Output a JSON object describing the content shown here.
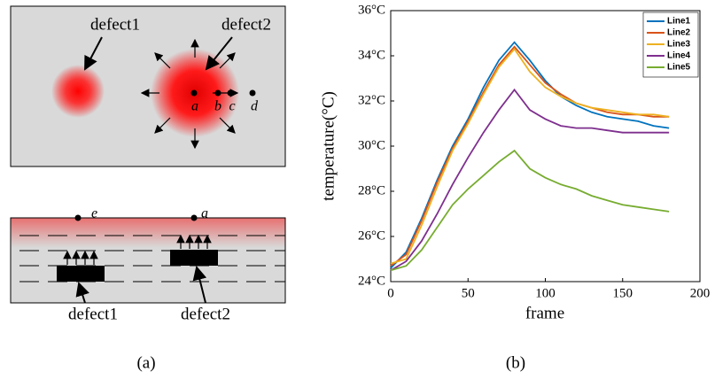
{
  "panel_a": {
    "top": {
      "labels": [
        "defect1",
        "defect2"
      ],
      "points": [
        "a",
        "b",
        "c",
        "d"
      ]
    },
    "bottom": {
      "points": [
        "e",
        "a"
      ],
      "labels": [
        "defect1",
        "defect2"
      ]
    },
    "caption": "(a)"
  },
  "chart_data": {
    "type": "line",
    "caption": "(b)",
    "xlabel": "frame",
    "ylabel": "temperature(°C)",
    "x": [
      0,
      10,
      20,
      30,
      40,
      50,
      60,
      70,
      80,
      90,
      100,
      110,
      120,
      130,
      140,
      150,
      160,
      170,
      180
    ],
    "series": [
      {
        "name": "Line1",
        "color": "#0072bd",
        "values": [
          24.6,
          25.3,
          26.8,
          28.5,
          30.0,
          31.2,
          32.6,
          33.8,
          34.6,
          33.8,
          32.9,
          32.2,
          31.8,
          31.5,
          31.3,
          31.2,
          31.1,
          30.9,
          30.8
        ]
      },
      {
        "name": "Line2",
        "color": "#d95319",
        "values": [
          24.7,
          25.2,
          26.7,
          28.4,
          29.9,
          31.1,
          32.4,
          33.6,
          34.4,
          33.6,
          32.8,
          32.3,
          31.9,
          31.7,
          31.5,
          31.4,
          31.4,
          31.3,
          31.3
        ]
      },
      {
        "name": "Line3",
        "color": "#edb120",
        "values": [
          24.8,
          25.0,
          26.5,
          28.2,
          29.8,
          31.0,
          32.3,
          33.5,
          34.3,
          33.3,
          32.6,
          32.2,
          31.9,
          31.7,
          31.6,
          31.5,
          31.4,
          31.4,
          31.3
        ]
      },
      {
        "name": "Line4",
        "color": "#7e2f8e",
        "values": [
          24.5,
          24.9,
          25.8,
          27.0,
          28.3,
          29.5,
          30.6,
          31.6,
          32.5,
          31.6,
          31.2,
          30.9,
          30.8,
          30.8,
          30.7,
          30.6,
          30.6,
          30.6,
          30.6
        ]
      },
      {
        "name": "Line5",
        "color": "#77ac30",
        "values": [
          24.5,
          24.7,
          25.4,
          26.4,
          27.4,
          28.1,
          28.7,
          29.3,
          29.8,
          29.0,
          28.6,
          28.3,
          28.1,
          27.8,
          27.6,
          27.4,
          27.3,
          27.2,
          27.1
        ]
      }
    ],
    "xlim": [
      0,
      200
    ],
    "xticks": [
      0,
      50,
      100,
      150,
      200
    ],
    "ylim": [
      24,
      36
    ],
    "yticks": [
      {
        "value": 24,
        "label": "24°C"
      },
      {
        "value": 26,
        "label": "26°C"
      },
      {
        "value": 28,
        "label": "28°C"
      },
      {
        "value": 30,
        "label": "30°C"
      },
      {
        "value": 32,
        "label": "32°C"
      },
      {
        "value": 34,
        "label": "34°C"
      },
      {
        "value": 36,
        "label": "36°C"
      }
    ],
    "grid": false,
    "legend": "upper right"
  }
}
